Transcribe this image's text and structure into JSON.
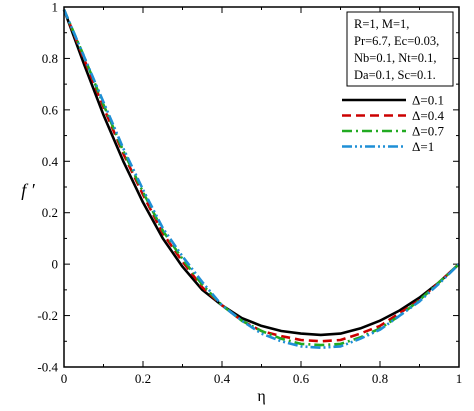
{
  "chart_data": {
    "type": "line",
    "xlabel": "η",
    "ylabel": "f ′",
    "xlim": [
      0,
      1
    ],
    "ylim": [
      -0.4,
      1
    ],
    "xticks": [
      0,
      0.2,
      0.4,
      0.6,
      0.8,
      1
    ],
    "xtick_labels": [
      "0",
      "0.2",
      "0.4",
      "0.6",
      "0.8",
      "1"
    ],
    "yticks": [
      -0.4,
      -0.2,
      0,
      0.2,
      0.4,
      0.6,
      0.8,
      1
    ],
    "ytick_labels": [
      "-0.4",
      "-0.2",
      "0",
      "0.2",
      "0.4",
      "0.6",
      "0.8",
      "1"
    ],
    "parameters": [
      "R=1,      M=1,",
      "Pr=6.7,  Ec=0.03,",
      "Nb=0.1,  Nt=0.1,",
      "Da=0.1,  Sc=0.1."
    ],
    "legend_position": "top-right",
    "series": [
      {
        "name": "Δ=0.1",
        "color": "#000000",
        "dash": "solid",
        "x": [
          0,
          0.05,
          0.1,
          0.15,
          0.2,
          0.25,
          0.3,
          0.35,
          0.4,
          0.45,
          0.5,
          0.55,
          0.6,
          0.65,
          0.7,
          0.75,
          0.8,
          0.85,
          0.9,
          0.95,
          1.0
        ],
        "y": [
          0.99,
          0.78,
          0.58,
          0.4,
          0.24,
          0.1,
          -0.01,
          -0.1,
          -0.16,
          -0.21,
          -0.24,
          -0.26,
          -0.27,
          -0.275,
          -0.27,
          -0.25,
          -0.22,
          -0.18,
          -0.13,
          -0.07,
          0.0
        ]
      },
      {
        "name": "Δ=0.4",
        "color": "#cc0000",
        "dash": "dash",
        "x": [
          0,
          0.05,
          0.1,
          0.15,
          0.2,
          0.25,
          0.3,
          0.35,
          0.4,
          0.45,
          0.5,
          0.55,
          0.6,
          0.65,
          0.7,
          0.75,
          0.8,
          0.85,
          0.9,
          0.95,
          1.0
        ],
        "y": [
          0.99,
          0.8,
          0.61,
          0.43,
          0.27,
          0.12,
          0.01,
          -0.09,
          -0.16,
          -0.22,
          -0.26,
          -0.28,
          -0.295,
          -0.3,
          -0.295,
          -0.27,
          -0.24,
          -0.19,
          -0.14,
          -0.07,
          0.0
        ]
      },
      {
        "name": "Δ=0.7",
        "color": "#22aa22",
        "dash": "dashdot",
        "x": [
          0,
          0.05,
          0.1,
          0.15,
          0.2,
          0.25,
          0.3,
          0.35,
          0.4,
          0.45,
          0.5,
          0.55,
          0.6,
          0.65,
          0.7,
          0.75,
          0.8,
          0.85,
          0.9,
          0.95,
          1.0
        ],
        "y": [
          0.99,
          0.81,
          0.62,
          0.44,
          0.28,
          0.13,
          0.02,
          -0.08,
          -0.16,
          -0.22,
          -0.26,
          -0.29,
          -0.31,
          -0.315,
          -0.31,
          -0.285,
          -0.25,
          -0.2,
          -0.14,
          -0.07,
          0.0
        ]
      },
      {
        "name": "Δ=1",
        "color": "#1f8fd6",
        "dash": "dashdotdot",
        "x": [
          0,
          0.05,
          0.1,
          0.15,
          0.2,
          0.25,
          0.3,
          0.35,
          0.4,
          0.45,
          0.5,
          0.55,
          0.6,
          0.65,
          0.7,
          0.75,
          0.8,
          0.85,
          0.9,
          0.95,
          1.0
        ],
        "y": [
          0.99,
          0.81,
          0.63,
          0.45,
          0.29,
          0.14,
          0.03,
          -0.07,
          -0.16,
          -0.22,
          -0.27,
          -0.3,
          -0.32,
          -0.325,
          -0.32,
          -0.29,
          -0.255,
          -0.2,
          -0.145,
          -0.075,
          0.0
        ]
      }
    ]
  }
}
